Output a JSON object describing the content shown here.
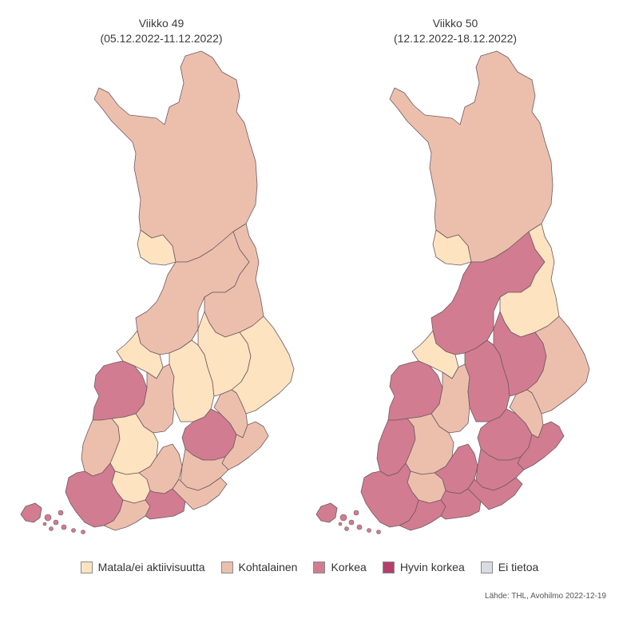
{
  "maps": [
    {
      "title": "Viikko 49",
      "subtitle": "(05.12.2022-11.12.2022)",
      "regions": {
        "lappi": "kohtalainen",
        "lansipohja": "matala",
        "pohjois_pohjanmaa": "kohtalainen",
        "kainuu": "kohtalainen",
        "keski_pohjanmaa": "matala",
        "vaasa": "korkea",
        "etela_pohjanmaa": "kohtalainen",
        "keski_suomi": "matala",
        "pohjois_savo": "matala",
        "pohjois_karjala": "matala",
        "satakunta": "kohtalainen",
        "pirkanmaa": "matala",
        "kanta_hame": "matala",
        "paijat_hame": "kohtalainen",
        "etela_savo": "korkea",
        "ita_savo": "kohtalainen",
        "etela_karjala": "kohtalainen",
        "kymenlaakso": "kohtalainen",
        "varsinais_suomi": "korkea",
        "ahvenanmaa": "korkea",
        "lansi_uusimaa": "kohtalainen",
        "keski_uusimaa": "korkea",
        "ita_uusimaa": "kohtalainen"
      }
    },
    {
      "title": "Viikko 50",
      "subtitle": "(12.12.2022-18.12.2022)",
      "regions": {
        "lappi": "kohtalainen",
        "lansipohja": "matala",
        "pohjois_pohjanmaa": "korkea",
        "kainuu": "matala",
        "keski_pohjanmaa": "matala",
        "vaasa": "korkea",
        "etela_pohjanmaa": "kohtalainen",
        "keski_suomi": "korkea",
        "pohjois_savo": "korkea",
        "pohjois_karjala": "kohtalainen",
        "satakunta": "korkea",
        "pirkanmaa": "kohtalainen",
        "kanta_hame": "kohtalainen",
        "paijat_hame": "korkea",
        "etela_savo": "korkea",
        "ita_savo": "kohtalainen",
        "etela_karjala": "korkea",
        "kymenlaakso": "korkea",
        "varsinais_suomi": "korkea",
        "ahvenanmaa": "korkea",
        "lansi_uusimaa": "korkea",
        "keski_uusimaa": "korkea",
        "ita_uusimaa": "korkea"
      }
    }
  ],
  "legend": [
    {
      "key": "matala",
      "label": "Matala/ei aktiivisuutta",
      "color": "#fde3c0"
    },
    {
      "key": "kohtalainen",
      "label": "Kohtalainen",
      "color": "#ecbfad"
    },
    {
      "key": "korkea",
      "label": "Korkea",
      "color": "#d27c91"
    },
    {
      "key": "hyvin_korkea",
      "label": "Hyvin korkea",
      "color": "#b33f6c"
    },
    {
      "key": "ei_tietoa",
      "label": "Ei tietoa",
      "color": "#d9dce1"
    }
  ],
  "source": "Lähde: THL, Avohilmo 2022-12-19"
}
